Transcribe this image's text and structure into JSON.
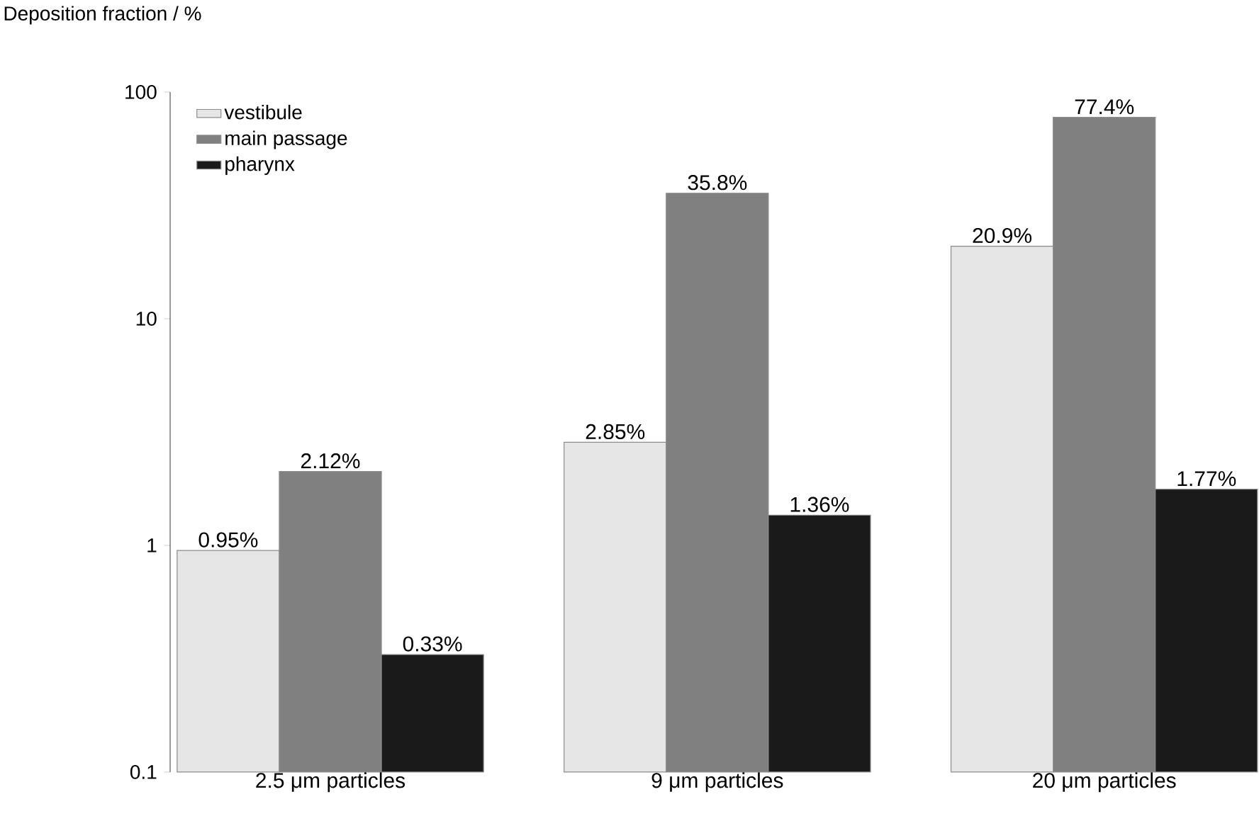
{
  "chart_data": {
    "type": "bar",
    "ylabel": "Deposition fraction / %",
    "categories": [
      "2.5 μm particles",
      "9 μm particles",
      "20 μm particles"
    ],
    "series": [
      {
        "name": "vestibule",
        "color": "#e6e6e6",
        "values": [
          0.95,
          2.85,
          20.9
        ],
        "value_labels": [
          "0.95%",
          "2.85%",
          "20.9%"
        ]
      },
      {
        "name": "main passage",
        "color": "#808080",
        "values": [
          2.12,
          35.8,
          77.4
        ],
        "value_labels": [
          "2.12%",
          "35.8%",
          "77.4%"
        ]
      },
      {
        "name": "pharynx",
        "color": "#1a1a1a",
        "values": [
          0.33,
          1.36,
          1.77
        ],
        "value_labels": [
          "0.33%",
          "1.36%",
          "1.77%"
        ]
      }
    ],
    "log": "y",
    "ylim": [
      0.1,
      100
    ],
    "yticks": [
      0.1,
      1,
      10,
      100
    ],
    "legend": "top left",
    "grid": false
  }
}
